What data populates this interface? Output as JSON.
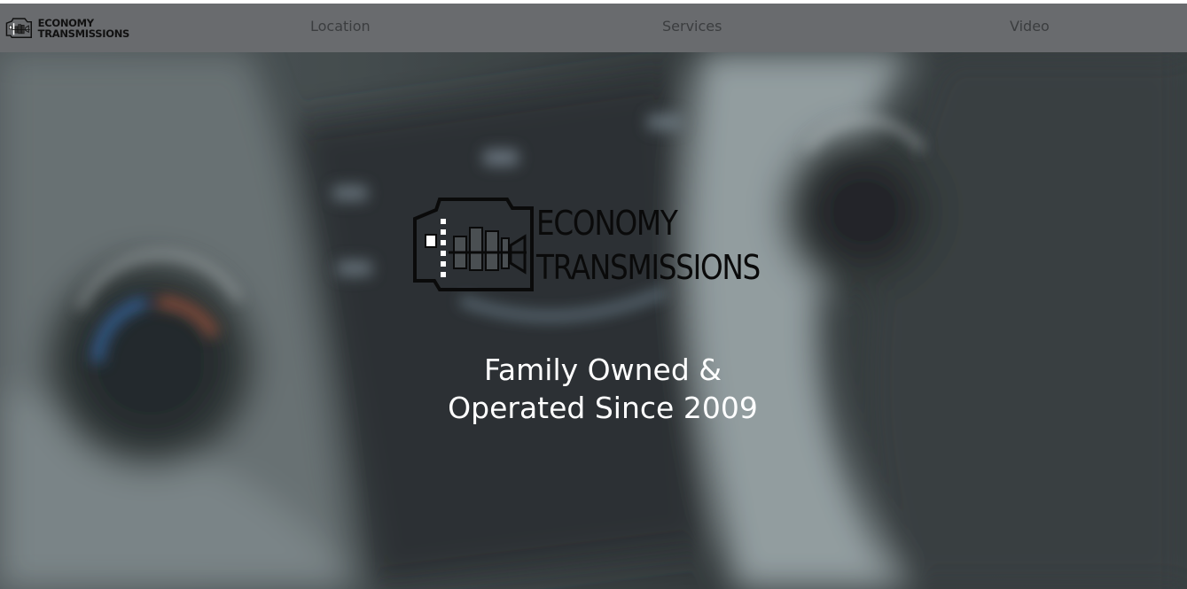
{
  "nav": {
    "logo_line1": "ECONOMY",
    "logo_line2": "TRANSMISSIONS",
    "links": [
      {
        "label": "Location"
      },
      {
        "label": "Services"
      },
      {
        "label": "Video"
      }
    ]
  },
  "hero": {
    "logo_line1": "ECONOMY",
    "logo_line2": "TRANSMISSIONS",
    "tagline": "Family Owned & Operated Since 2009"
  },
  "colors": {
    "navbar": "#696b6e",
    "nav_link": "#3b3d3f",
    "tagline": "#ffffff"
  },
  "icons": {
    "nav_logo": "transmission-logo-icon",
    "hero_logo": "transmission-logo-icon"
  }
}
